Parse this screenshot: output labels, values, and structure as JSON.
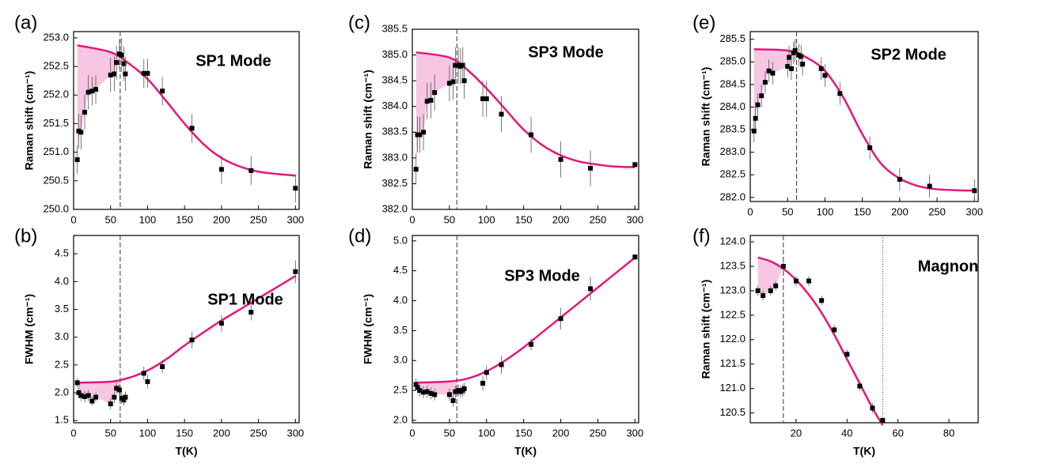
{
  "chart_data": [
    {
      "type": "scatter",
      "panel_label": "(a)",
      "annotation": "SP1 Mode",
      "y_label": "Raman shift (cm⁻¹)",
      "xlim": [
        0,
        305
      ],
      "ylim": [
        250,
        253.11
      ],
      "xticks": [
        0,
        50,
        100,
        150,
        200,
        250,
        300
      ],
      "yticks": [
        {
          "value": 250,
          "label": "250.0"
        },
        250.5,
        {
          "value": 251,
          "label": "251.0"
        },
        251.5,
        {
          "value": 252,
          "label": "252.0"
        },
        252.5,
        {
          "value": 253,
          "label": "253.0"
        }
      ],
      "vlines": [
        {
          "x": 63,
          "style": "dashed"
        }
      ],
      "points": {
        "color": "#000000",
        "x": [
          5,
          7,
          10,
          15,
          20,
          25,
          30,
          50,
          55,
          58,
          62,
          65,
          68,
          70,
          95,
          100,
          120,
          160,
          200,
          240,
          300
        ],
        "values": [
          250.87,
          251.37,
          251.35,
          251.7,
          252.05,
          252.07,
          252.1,
          252.35,
          252.37,
          252.57,
          252.72,
          252.7,
          252.55,
          252.37,
          252.38,
          252.38,
          252.07,
          251.42,
          250.7,
          250.68,
          250.37
        ],
        "errors": [
          0.25,
          0.3,
          0.3,
          0.3,
          0.3,
          0.25,
          0.25,
          0.3,
          0.3,
          0.3,
          0.25,
          0.3,
          0.3,
          0.3,
          0.25,
          0.25,
          0.25,
          0.25,
          0.25,
          0.25,
          0.25
        ]
      },
      "fit": {
        "color": "#e6157d",
        "x": [
          5,
          50,
          75,
          100,
          125,
          150,
          175,
          200,
          225,
          250,
          275,
          300
        ],
        "values": [
          252.87,
          252.75,
          252.55,
          252.28,
          251.9,
          251.5,
          251.15,
          250.9,
          250.75,
          250.66,
          250.62,
          250.59
        ]
      },
      "shade_color": "#f7c6e3"
    },
    {
      "type": "scatter",
      "panel_label": "(b)",
      "annotation": "SP1 Mode",
      "y_label": "FWHM (cm⁻¹)",
      "x_label": "T(K)",
      "xlim": [
        0,
        305
      ],
      "ylim": [
        1.46,
        4.83
      ],
      "xticks": [
        0,
        50,
        100,
        150,
        200,
        250,
        300
      ],
      "yticks": [
        1.5,
        {
          "value": 2,
          "label": "2.0"
        },
        2.5,
        {
          "value": 3,
          "label": "3.0"
        },
        3.5,
        {
          "value": 4,
          "label": "4.0"
        },
        4.5
      ],
      "vlines": [
        {
          "x": 63,
          "style": "dashed"
        }
      ],
      "points": {
        "color": "#000000",
        "x": [
          5,
          7,
          10,
          15,
          20,
          25,
          30,
          50,
          55,
          58,
          62,
          65,
          68,
          70,
          95,
          100,
          120,
          160,
          200,
          240,
          300
        ],
        "values": [
          2.18,
          2.0,
          1.95,
          1.93,
          1.95,
          1.85,
          1.92,
          1.8,
          1.92,
          2.08,
          2.05,
          1.9,
          1.87,
          1.92,
          2.35,
          2.2,
          2.47,
          2.95,
          3.25,
          3.45,
          4.18
        ],
        "errors": [
          0.08,
          0.1,
          0.1,
          0.1,
          0.1,
          0.08,
          0.08,
          0.1,
          0.1,
          0.1,
          0.1,
          0.1,
          0.1,
          0.1,
          0.12,
          0.12,
          0.12,
          0.15,
          0.15,
          0.15,
          0.2
        ]
      },
      "fit": {
        "color": "#e6157d",
        "x": [
          5,
          50,
          75,
          100,
          125,
          150,
          175,
          200,
          225,
          250,
          275,
          300
        ],
        "values": [
          2.18,
          2.2,
          2.27,
          2.4,
          2.6,
          2.85,
          3.08,
          3.3,
          3.5,
          3.7,
          3.9,
          4.1
        ]
      },
      "shade_color": "#f7c6e3"
    },
    {
      "type": "scatter",
      "panel_label": "(c)",
      "annotation": "SP3 Mode",
      "y_label": "Raman shift (cm⁻¹)",
      "xlim": [
        0,
        305
      ],
      "ylim": [
        382,
        385.5
      ],
      "xticks": [
        0,
        50,
        100,
        150,
        200,
        250,
        300
      ],
      "yticks": [
        {
          "value": 382,
          "label": "382.0"
        },
        382.5,
        {
          "value": 383,
          "label": "383.0"
        },
        383.5,
        {
          "value": 384,
          "label": "384.0"
        },
        384.5,
        {
          "value": 385,
          "label": "385.0"
        },
        385.5
      ],
      "vlines": [
        {
          "x": 60,
          "style": "dashed"
        }
      ],
      "points": {
        "color": "#000000",
        "x": [
          5,
          7,
          10,
          15,
          20,
          25,
          30,
          50,
          55,
          58,
          62,
          65,
          68,
          70,
          95,
          100,
          120,
          160,
          200,
          240,
          300
        ],
        "values": [
          382.78,
          383.45,
          383.45,
          383.5,
          384.1,
          384.12,
          384.27,
          384.45,
          384.48,
          384.8,
          384.8,
          384.78,
          384.8,
          384.5,
          384.15,
          384.15,
          383.85,
          383.45,
          382.97,
          382.8,
          382.87
        ],
        "errors": [
          0.3,
          0.35,
          0.35,
          0.35,
          0.35,
          0.35,
          0.35,
          0.35,
          0.35,
          0.35,
          0.35,
          0.35,
          0.35,
          0.35,
          0.35,
          0.35,
          0.35,
          0.35,
          0.35,
          0.35,
          0.05
        ]
      },
      "fit": {
        "color": "#e6157d",
        "x": [
          5,
          50,
          75,
          100,
          125,
          150,
          175,
          200,
          225,
          250,
          275,
          300
        ],
        "values": [
          385.05,
          384.95,
          384.7,
          384.35,
          383.95,
          383.55,
          383.25,
          383.05,
          382.93,
          382.87,
          382.83,
          382.82
        ]
      },
      "shade_color": "#f7c6e3"
    },
    {
      "type": "scatter",
      "panel_label": "(d)",
      "annotation": "SP3 Mode",
      "y_label": "FWHM (cm⁻¹)",
      "x_label": "T(K)",
      "xlim": [
        0,
        305
      ],
      "ylim": [
        1.96,
        5.09
      ],
      "xticks": [
        0,
        50,
        100,
        150,
        200,
        250,
        300
      ],
      "yticks": [
        {
          "value": 2,
          "label": "2.0"
        },
        2.5,
        {
          "value": 3,
          "label": "3.0"
        },
        3.5,
        {
          "value": 4,
          "label": "4.0"
        },
        4.5,
        {
          "value": 5,
          "label": "5.0"
        }
      ],
      "vlines": [
        {
          "x": 60,
          "style": "dashed"
        }
      ],
      "points": {
        "color": "#000000",
        "x": [
          5,
          7,
          10,
          15,
          20,
          25,
          30,
          50,
          55,
          58,
          62,
          65,
          68,
          70,
          95,
          100,
          120,
          160,
          200,
          240,
          300
        ],
        "values": [
          2.6,
          2.55,
          2.5,
          2.47,
          2.48,
          2.45,
          2.43,
          2.43,
          2.33,
          2.48,
          2.5,
          2.48,
          2.5,
          2.53,
          2.62,
          2.8,
          2.93,
          3.27,
          3.7,
          4.2,
          4.73
        ],
        "errors": [
          0.1,
          0.1,
          0.1,
          0.1,
          0.1,
          0.1,
          0.1,
          0.1,
          0.1,
          0.1,
          0.1,
          0.1,
          0.1,
          0.1,
          0.12,
          0.12,
          0.15,
          0.1,
          0.18,
          0.2,
          0.05
        ]
      },
      "fit": {
        "color": "#e6157d",
        "x": [
          5,
          50,
          75,
          100,
          125,
          150,
          175,
          200,
          225,
          250,
          275,
          300
        ],
        "values": [
          2.63,
          2.65,
          2.7,
          2.82,
          3.0,
          3.22,
          3.47,
          3.72,
          3.97,
          4.22,
          4.47,
          4.72
        ]
      },
      "shade_color": "#f7c6e3"
    },
    {
      "type": "scatter",
      "panel_label": "(e)",
      "annotation": "SP2  Mode",
      "y_label": "Raman shift (cm⁻¹)",
      "xlim": [
        0,
        305
      ],
      "ylim": [
        281.91,
        285.67
      ],
      "xticks": [
        0,
        50,
        100,
        150,
        200,
        250,
        300
      ],
      "yticks": [
        {
          "value": 282,
          "label": "282.0"
        },
        282.5,
        {
          "value": 283,
          "label": "283.0"
        },
        283.5,
        {
          "value": 284,
          "label": "284.0"
        },
        284.5,
        {
          "value": 285,
          "label": "285.0"
        },
        285.5
      ],
      "vlines": [
        {
          "x": 62,
          "style": "dashed"
        }
      ],
      "points": {
        "color": "#000000",
        "x": [
          5,
          7,
          10,
          15,
          20,
          25,
          30,
          50,
          52,
          55,
          58,
          60,
          65,
          68,
          70,
          95,
          100,
          120,
          160,
          200,
          240,
          300
        ],
        "values": [
          283.47,
          283.75,
          284.05,
          284.25,
          284.55,
          284.8,
          284.75,
          284.9,
          285.1,
          284.85,
          285.2,
          285.25,
          285.15,
          285.12,
          284.95,
          284.85,
          284.7,
          284.3,
          283.1,
          282.4,
          282.25,
          282.15
        ],
        "errors": [
          0.25,
          0.25,
          0.25,
          0.25,
          0.25,
          0.25,
          0.25,
          0.25,
          0.25,
          0.25,
          0.25,
          0.25,
          0.25,
          0.25,
          0.25,
          0.25,
          0.25,
          0.25,
          0.25,
          0.25,
          0.25,
          0.25
        ]
      },
      "fit": {
        "color": "#e6157d",
        "x": [
          5,
          50,
          75,
          100,
          125,
          150,
          175,
          200,
          225,
          250,
          275,
          300
        ],
        "values": [
          285.28,
          285.25,
          285.1,
          284.8,
          284.2,
          283.4,
          282.75,
          282.42,
          282.25,
          282.18,
          282.16,
          282.15
        ]
      },
      "shade_color": "#f7c6e3"
    },
    {
      "type": "scatter",
      "panel_label": "(f)",
      "annotation": "Magnon",
      "y_label": "Raman shift (cm⁻¹)",
      "x_label": "T(K)",
      "xlim": [
        2,
        91.5
      ],
      "ylim": [
        120.3,
        124.13
      ],
      "xticks": [
        20,
        40,
        60,
        80
      ],
      "yticks": [
        120.5,
        {
          "value": 121,
          "label": "121.0"
        },
        121.5,
        {
          "value": 122,
          "label": "122.0"
        },
        122.5,
        {
          "value": 123,
          "label": "123.0"
        },
        123.5,
        {
          "value": 124,
          "label": "124.0"
        }
      ],
      "vlines": [
        {
          "x": 15,
          "style": "dashed"
        },
        {
          "x": 54,
          "style": "dotted"
        }
      ],
      "points": {
        "color": "#000000",
        "x": [
          5,
          7,
          10,
          12,
          15,
          20,
          25,
          30,
          35,
          40,
          45,
          50,
          54
        ],
        "values": [
          123.0,
          122.9,
          123.0,
          123.1,
          123.5,
          123.2,
          123.2,
          122.8,
          122.2,
          121.7,
          121.05,
          120.6,
          120.35
        ],
        "errors": [
          0.1,
          0.1,
          0.1,
          0.1,
          0.1,
          0.1,
          0.1,
          0.1,
          0.1,
          0.1,
          0.1,
          0.1,
          0.05
        ]
      },
      "fit": {
        "color": "#e6157d",
        "x": [
          5,
          10,
          15,
          20,
          25,
          30,
          35,
          40,
          45,
          50,
          54
        ],
        "values": [
          123.68,
          123.6,
          123.45,
          123.22,
          122.92,
          122.55,
          122.1,
          121.6,
          121.1,
          120.6,
          120.25
        ]
      },
      "shade_color": "#f7c6e3"
    }
  ]
}
